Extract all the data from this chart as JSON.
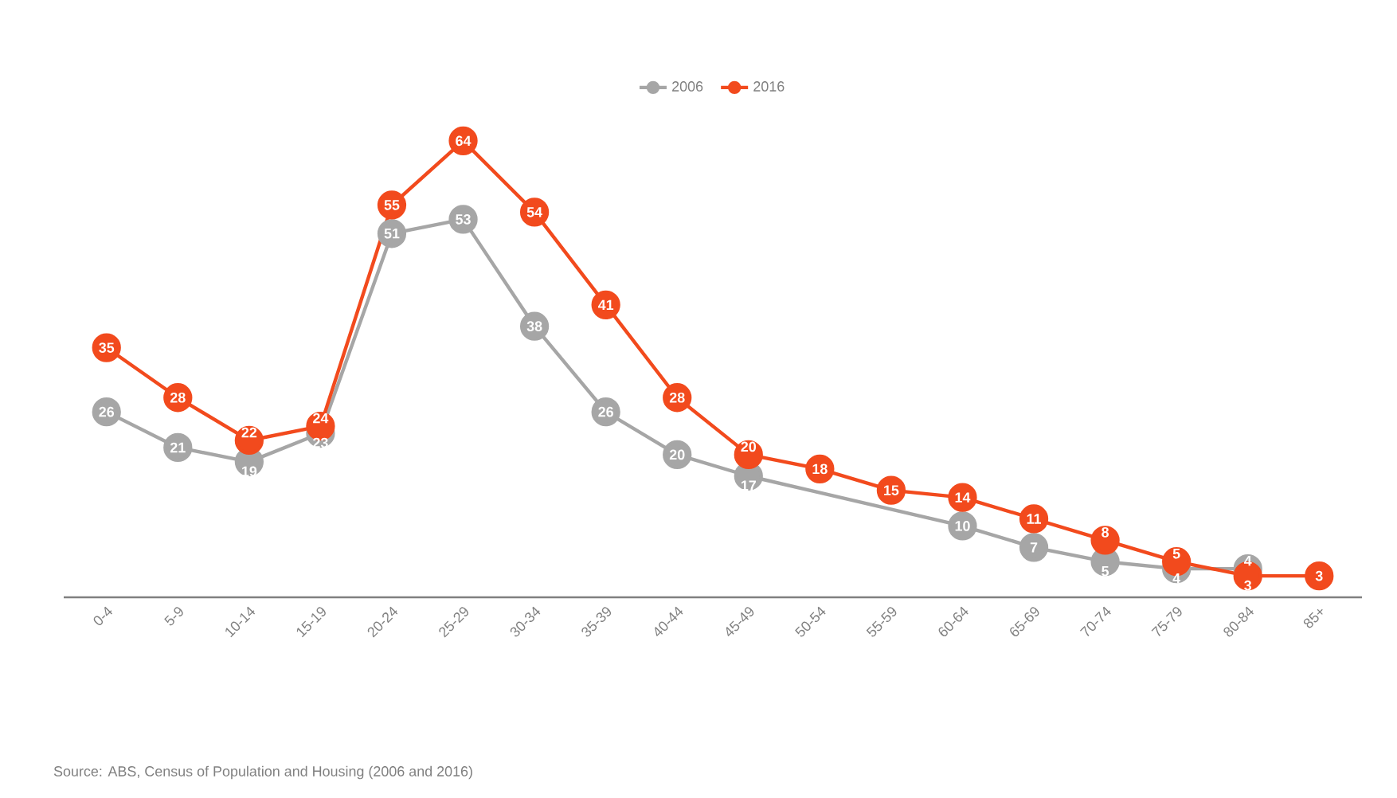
{
  "chart_data": {
    "type": "line",
    "categories": [
      "0-4",
      "5-9",
      "10-14",
      "15-19",
      "20-24",
      "25-29",
      "30-34",
      "35-39",
      "40-44",
      "45-49",
      "50-54",
      "55-59",
      "60-64",
      "65-69",
      "70-74",
      "75-79",
      "80-84",
      "85+"
    ],
    "series": [
      {
        "name": "2006",
        "color": "#a6a6a6",
        "values": [
          26,
          21,
          19,
          23,
          51,
          53,
          38,
          26,
          20,
          17,
          null,
          null,
          10,
          7,
          5,
          4,
          4,
          null
        ],
        "value_labels": [
          "26",
          "21",
          "19",
          "23",
          "51",
          "53",
          "38",
          "26",
          "20",
          "17",
          null,
          null,
          "10",
          "7",
          "5",
          "4",
          "4",
          null
        ]
      },
      {
        "name": "2016",
        "color": "#f24a1d",
        "values": [
          35,
          28,
          22,
          24,
          55,
          64,
          54,
          41,
          28,
          20,
          18,
          15,
          14,
          11,
          8,
          5,
          3,
          3
        ],
        "value_labels": [
          "35",
          "28",
          "22",
          "24",
          "55",
          "64",
          "54",
          "41",
          "28",
          "20",
          "18",
          "15",
          "14",
          "11",
          "8",
          "5",
          "3",
          "3"
        ]
      }
    ],
    "tick_labels": "x",
    "legend": "top",
    "marker": "circle",
    "line_style": "solid",
    "annotations": [
      "Source: ABS, Census of Population and Housing (2006 and 2016)"
    ]
  }
}
